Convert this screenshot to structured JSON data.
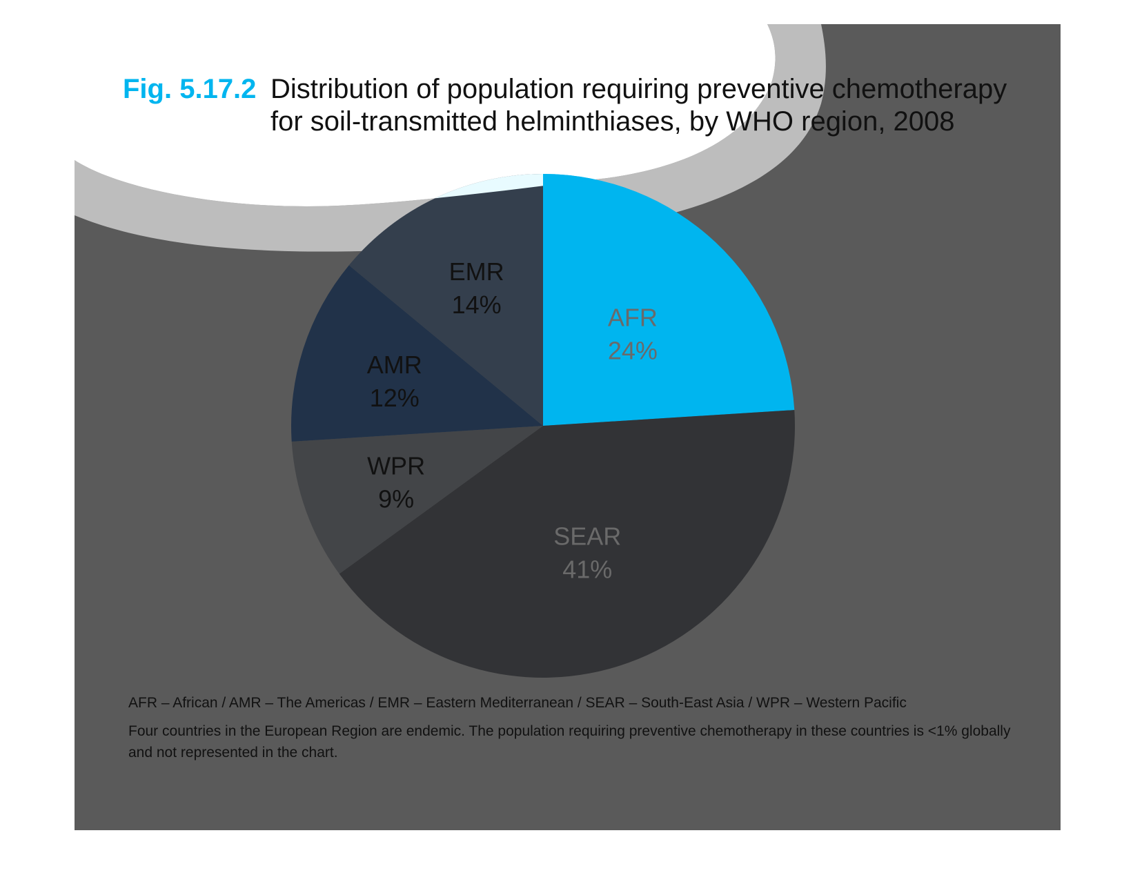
{
  "figure": {
    "number": "Fig. 5.17.2",
    "title_line1": "Distribution of population requiring preventive chemotherapy",
    "title_line2": "for soil-transmitted helminthiases, by WHO region, 2008"
  },
  "chart_data": {
    "type": "pie",
    "title": "Distribution of population requiring preventive chemotherapy for soil-transmitted helminthiases, by WHO region, 2008",
    "slices": [
      {
        "label": "AFR",
        "value": 24,
        "value_label": "24%",
        "color": "#00b5ef"
      },
      {
        "label": "SEAR",
        "value": 41,
        "value_label": "41%",
        "color": "#323336"
      },
      {
        "label": "WPR",
        "value": 9,
        "value_label": "9%",
        "color": "#434548"
      },
      {
        "label": "AMR",
        "value": 12,
        "value_label": "12%",
        "color": "#213249"
      },
      {
        "label": "EMR",
        "value": 14,
        "value_label": "14%",
        "color": "#343f4d"
      }
    ],
    "start_angle_deg": 0,
    "direction": "clockwise"
  },
  "footnotes": {
    "legend": "AFR – African / AMR – The Americas / EMR – Eastern Mediterranean / SEAR – South-East Asia / WPR – Western Pacific",
    "note_line1": "Four countries in the European Region are endemic. The population requiring preventive chemotherapy in these countries is <1% globally",
    "note_line2": "and not represented in the chart."
  },
  "colors": {
    "panel_background": "#5a5a5a",
    "cloud_shadow": "#bdbdbd",
    "cloud": "#ffffff",
    "figure_number": "#00b5ef",
    "light_label": "#6a6a6a",
    "dark_label": "#111111"
  }
}
